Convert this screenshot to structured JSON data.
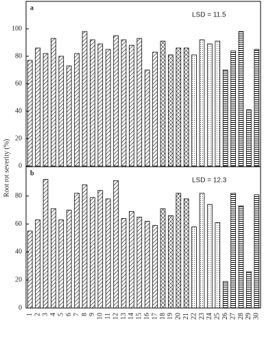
{
  "chart_data": [
    {
      "type": "bar",
      "panel_label": "a",
      "annotation": "LSD = 11.5",
      "ylabel": "Root rot severity (%)",
      "values": [
        77,
        86,
        82,
        93,
        80,
        73,
        82,
        98,
        92,
        89,
        85,
        95,
        92,
        88,
        93,
        70,
        83,
        91,
        81,
        86,
        86,
        81,
        92,
        89,
        91,
        70,
        84,
        98,
        41,
        85
      ],
      "patterns": [
        "hatch",
        "hatch",
        "hatch",
        "hatch",
        "hatch",
        "hatch",
        "hatch",
        "hatch",
        "hatch",
        "hatch",
        "hatch",
        "hatch",
        "hatch",
        "hatch",
        "hatch",
        "hatch",
        "hatch",
        "cross",
        "cross",
        "cross",
        "cross",
        "dots",
        "dots",
        "dots",
        "dots",
        "hlines",
        "hlines",
        "hlines",
        "hlines",
        "hlines"
      ],
      "ylim": [
        0,
        120
      ],
      "yticks": [
        0,
        20,
        40,
        60,
        80,
        100
      ]
    },
    {
      "type": "bar",
      "panel_label": "b",
      "annotation": "LSD = 12.3",
      "categories": [
        "1",
        "2",
        "3",
        "4",
        "5",
        "6",
        "7",
        "8",
        "9",
        "10",
        "11",
        "12",
        "13",
        "14",
        "15",
        "16",
        "17",
        "18",
        "19",
        "20",
        "21",
        "22",
        "23",
        "24",
        "25",
        "26",
        "27",
        "28",
        "29",
        "30"
      ],
      "values": [
        55,
        63,
        92,
        71,
        63,
        70,
        82,
        88,
        79,
        84,
        78,
        91,
        64,
        69,
        65,
        62,
        59,
        71,
        66,
        82,
        78,
        58,
        82,
        74,
        61,
        19,
        82,
        73,
        26,
        81
      ],
      "patterns": [
        "hatch",
        "hatch",
        "hatch",
        "hatch",
        "hatch",
        "hatch",
        "hatch",
        "hatch",
        "hatch",
        "hatch",
        "hatch",
        "hatch",
        "hatch",
        "hatch",
        "hatch",
        "hatch",
        "hatch",
        "cross",
        "cross",
        "cross",
        "cross",
        "dots",
        "dots",
        "dots",
        "dots",
        "hlines",
        "hlines",
        "hlines",
        "hlines",
        "hlines"
      ],
      "ylim": [
        0,
        101
      ],
      "yticks": [
        0,
        20,
        40,
        60,
        80
      ]
    }
  ]
}
